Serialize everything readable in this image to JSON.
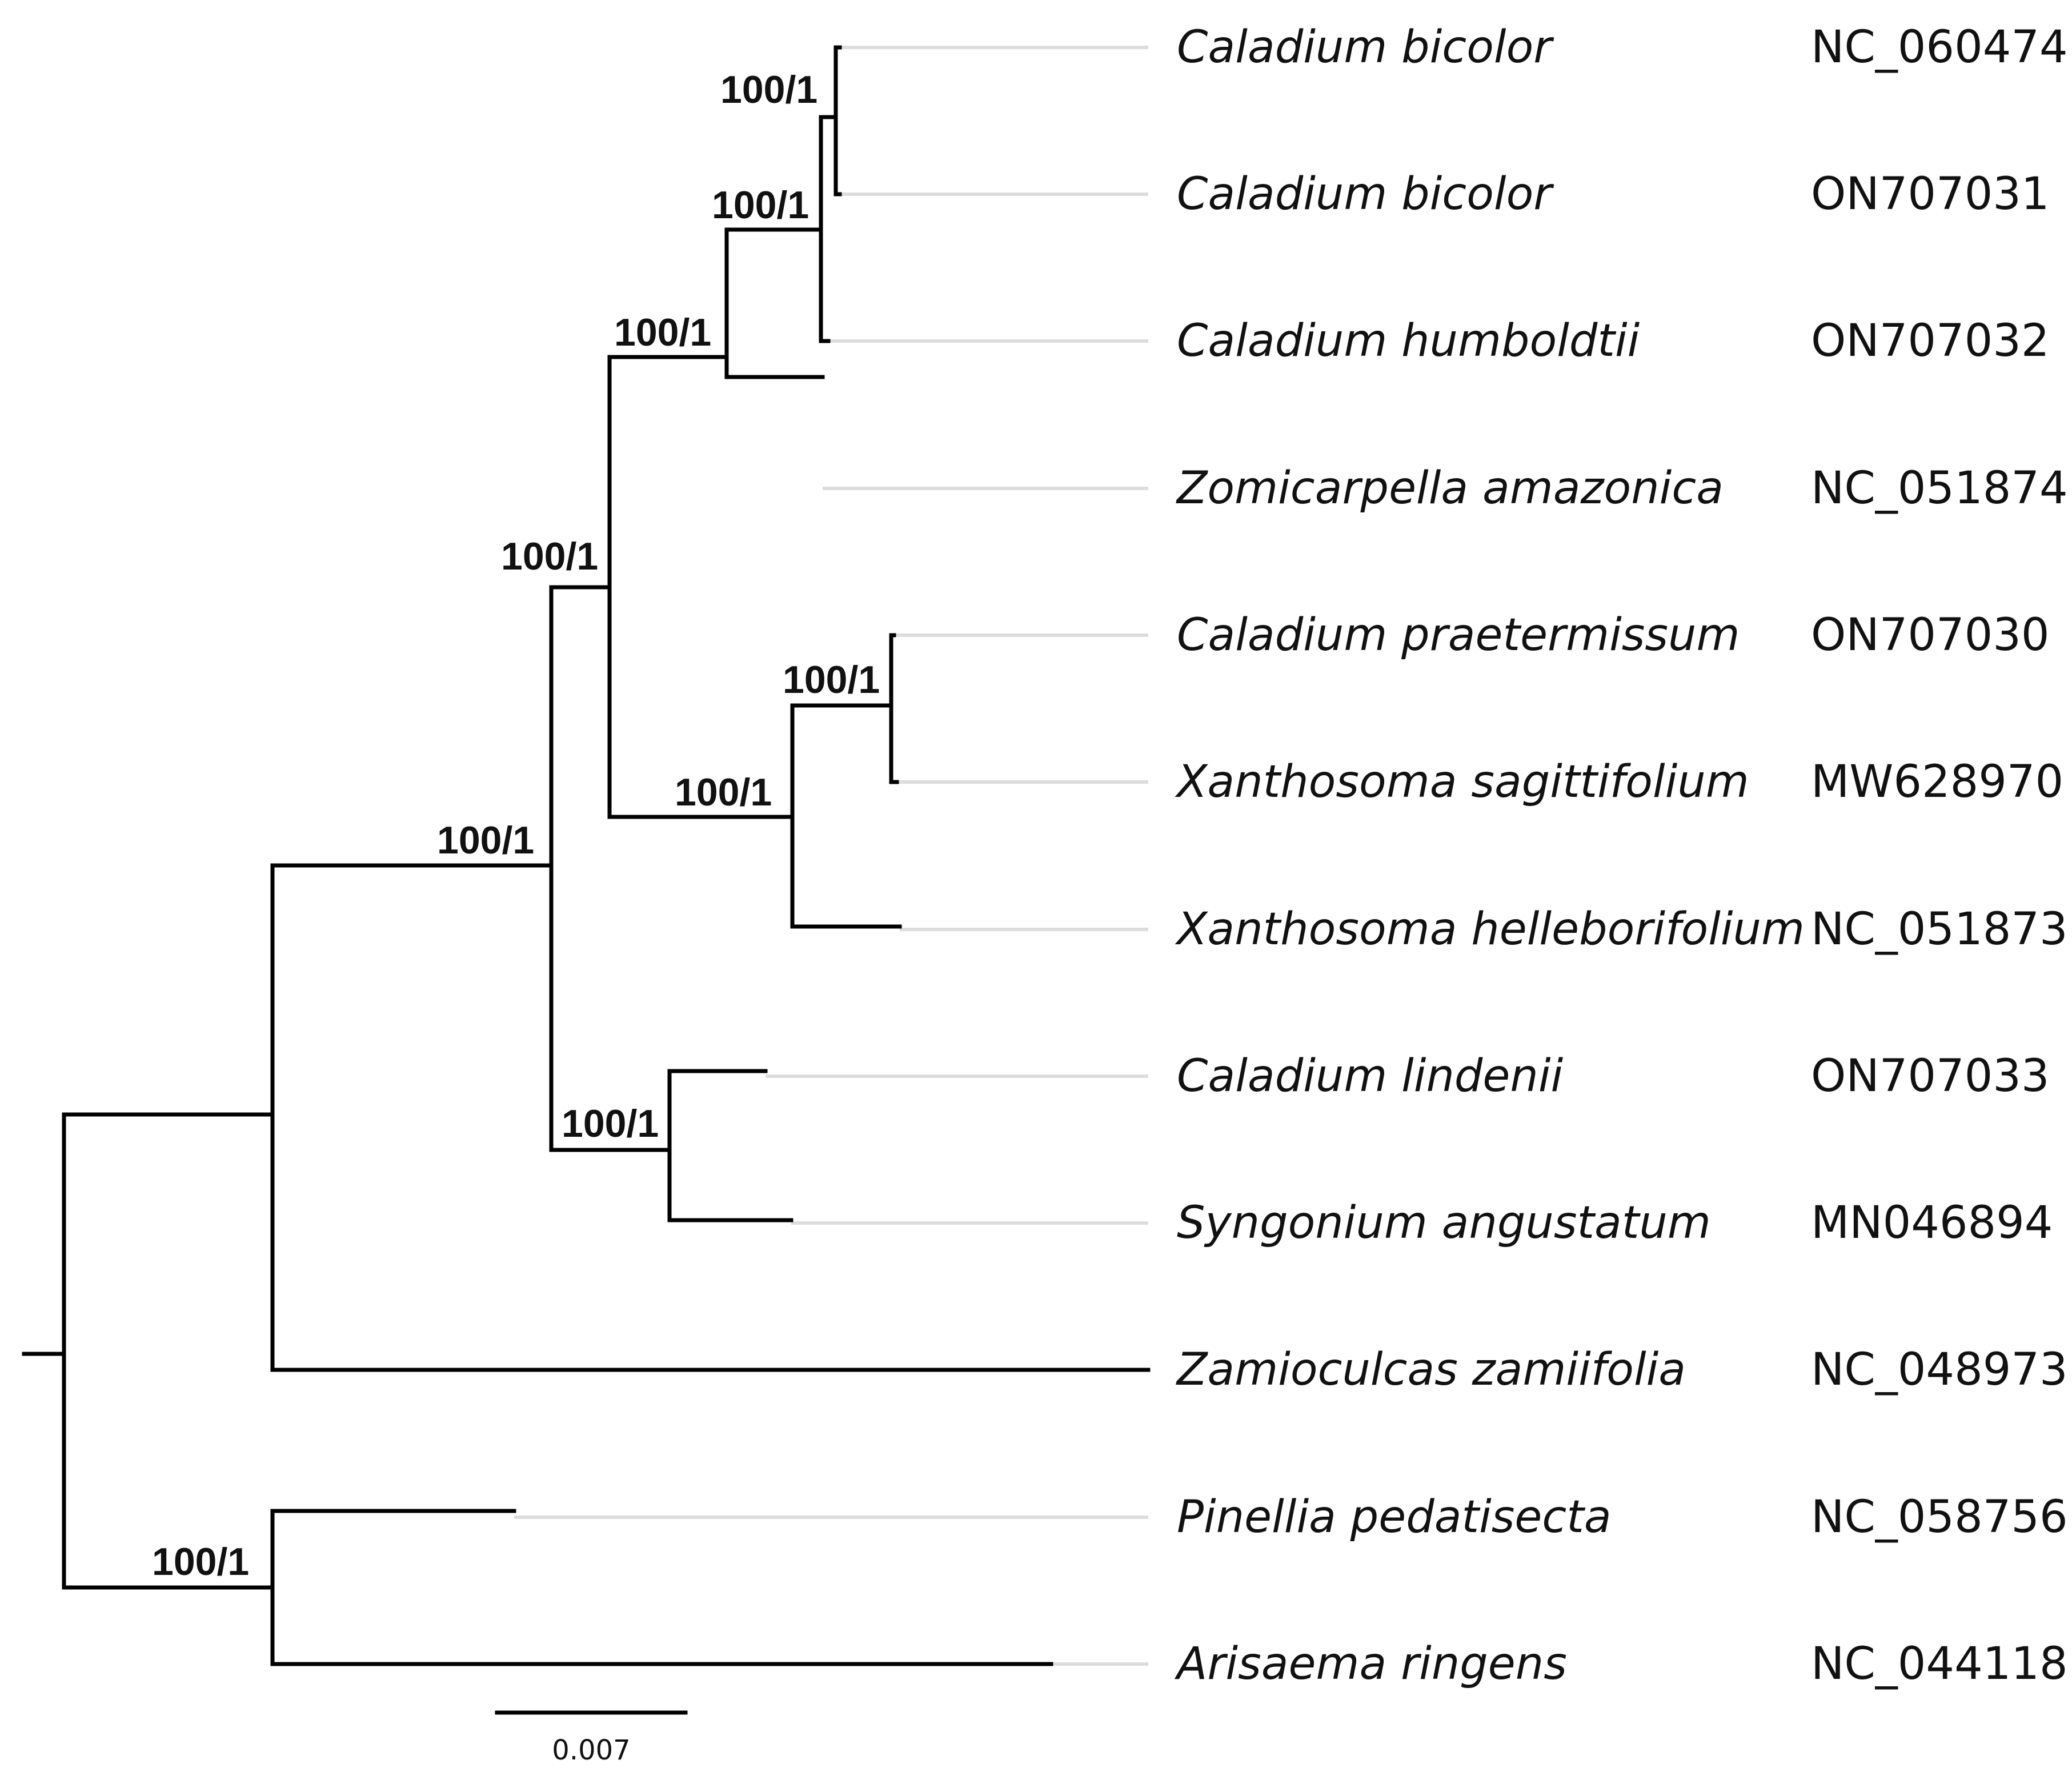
{
  "tree": {
    "support_label": "100/1",
    "scale_bar_label": "0.007",
    "taxa": [
      {
        "name": "Caladium bicolor",
        "accession": "NC_060474"
      },
      {
        "name": "Caladium bicolor",
        "accession": "ON707031"
      },
      {
        "name": "Caladium humboldtii",
        "accession": "ON707032"
      },
      {
        "name": "Zomicarpella amazonica",
        "accession": "NC_051874"
      },
      {
        "name": "Caladium praetermissum",
        "accession": "ON707030"
      },
      {
        "name": "Xanthosoma sagittifolium",
        "accession": "MW628970"
      },
      {
        "name": "Xanthosoma helleborifolium",
        "accession": "NC_051873"
      },
      {
        "name": "Caladium lindenii",
        "accession": "ON707033"
      },
      {
        "name": "Syngonium angustatum",
        "accession": "MN046894"
      },
      {
        "name": "Zamioculcas zamiifolia",
        "accession": "NC_048973"
      },
      {
        "name": "Pinellia pedatisecta",
        "accession": "NC_058756"
      },
      {
        "name": "Arisaema ringens",
        "accession": "NC_044118"
      }
    ]
  },
  "colors": {
    "branch": "#000000",
    "guide_line": "#dcdcdc",
    "text": "#111111"
  }
}
